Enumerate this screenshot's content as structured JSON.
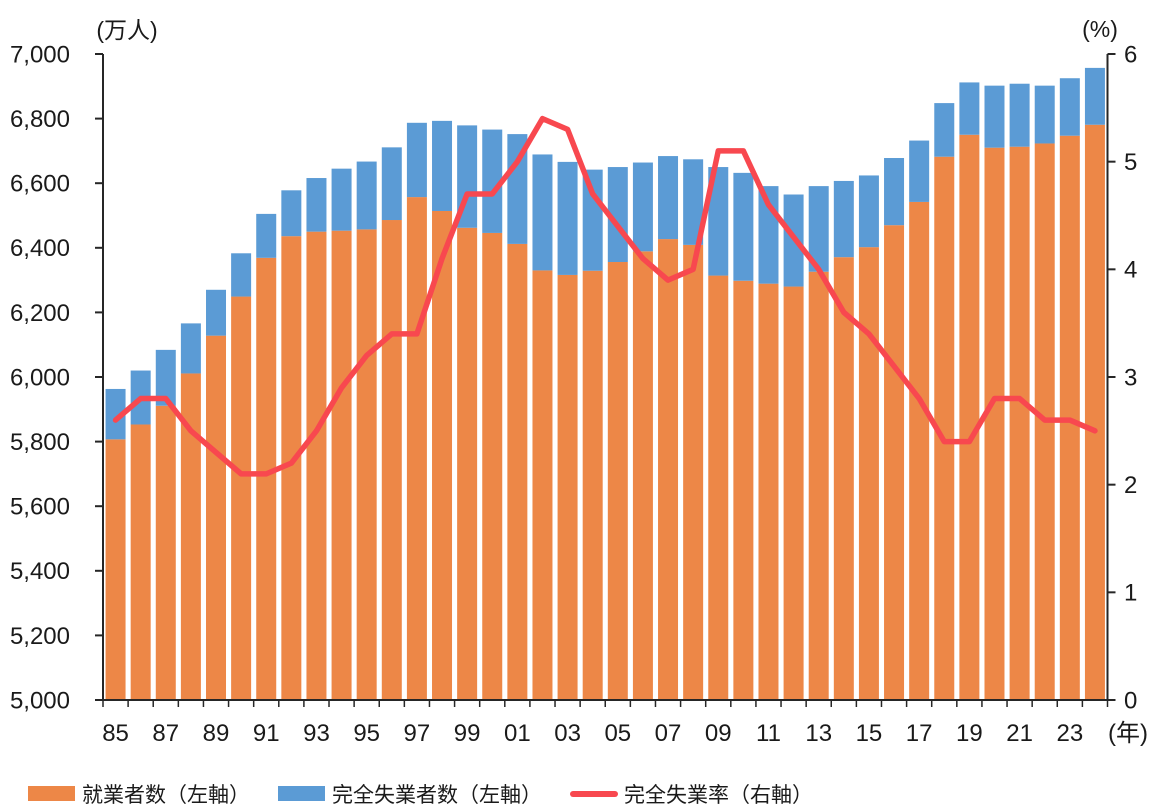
{
  "chart_data": {
    "type": "bar",
    "subtype": "stacked-bars-with-line-combo",
    "title": "",
    "grid": false,
    "background": "#FFFFFF",
    "axis_color": "#262626",
    "text_color": "#1A1A1A",
    "legend_position": "bottom",
    "categories": [
      1985,
      1986,
      1987,
      1988,
      1989,
      1990,
      1991,
      1992,
      1993,
      1994,
      1995,
      1996,
      1997,
      1998,
      1999,
      2000,
      2001,
      2002,
      2003,
      2004,
      2005,
      2006,
      2007,
      2008,
      2009,
      2010,
      2011,
      2012,
      2013,
      2014,
      2015,
      2016,
      2017,
      2018,
      2019,
      2020,
      2021,
      2022,
      2023,
      2024
    ],
    "series": [
      {
        "name": "就業者数（左軸）",
        "type": "bar",
        "stack": "total",
        "axis": "left",
        "color": "#ED8747",
        "values": [
          5807,
          5853,
          5911,
          6011,
          6128,
          6249,
          6369,
          6436,
          6450,
          6453,
          6457,
          6486,
          6557,
          6514,
          6462,
          6446,
          6412,
          6330,
          6316,
          6329,
          6356,
          6389,
          6427,
          6409,
          6314,
          6298,
          6289,
          6280,
          6326,
          6371,
          6402,
          6470,
          6542,
          6682,
          6750,
          6710,
          6713,
          6723,
          6747,
          6781
        ]
      },
      {
        "name": "完全失業者数（左軸）",
        "type": "bar",
        "stack": "total",
        "axis": "left",
        "color": "#5B9BD5",
        "values": [
          156,
          167,
          173,
          155,
          142,
          134,
          136,
          142,
          166,
          192,
          210,
          225,
          230,
          279,
          317,
          320,
          340,
          359,
          350,
          313,
          294,
          275,
          257,
          265,
          336,
          334,
          302,
          285,
          265,
          236,
          222,
          208,
          190,
          166,
          162,
          192,
          195,
          179,
          178,
          176
        ]
      },
      {
        "name": "完全失業率（右軸）",
        "type": "line",
        "axis": "right",
        "color": "#F8484F",
        "values": [
          2.6,
          2.8,
          2.8,
          2.5,
          2.3,
          2.1,
          2.1,
          2.2,
          2.5,
          2.9,
          3.2,
          3.4,
          3.4,
          4.1,
          4.7,
          4.7,
          5.0,
          5.4,
          5.3,
          4.7,
          4.4,
          4.1,
          3.9,
          4.0,
          5.1,
          5.1,
          4.6,
          4.3,
          4.0,
          3.6,
          3.4,
          3.1,
          2.8,
          2.4,
          2.4,
          2.8,
          2.8,
          2.6,
          2.6,
          2.5
        ]
      }
    ],
    "left_axis": {
      "unit_label": "(万人)",
      "min": 5000,
      "max": 7000,
      "step": 200
    },
    "right_axis": {
      "unit_label": "(%)",
      "min": 0,
      "max": 6,
      "step": 1
    },
    "x_axis": {
      "unit_label": "(年)",
      "tick_labels": [
        "85",
        "87",
        "89",
        "91",
        "93",
        "95",
        "97",
        "99",
        "01",
        "03",
        "05",
        "07",
        "09",
        "11",
        "13",
        "15",
        "17",
        "19",
        "21",
        "23"
      ]
    }
  }
}
